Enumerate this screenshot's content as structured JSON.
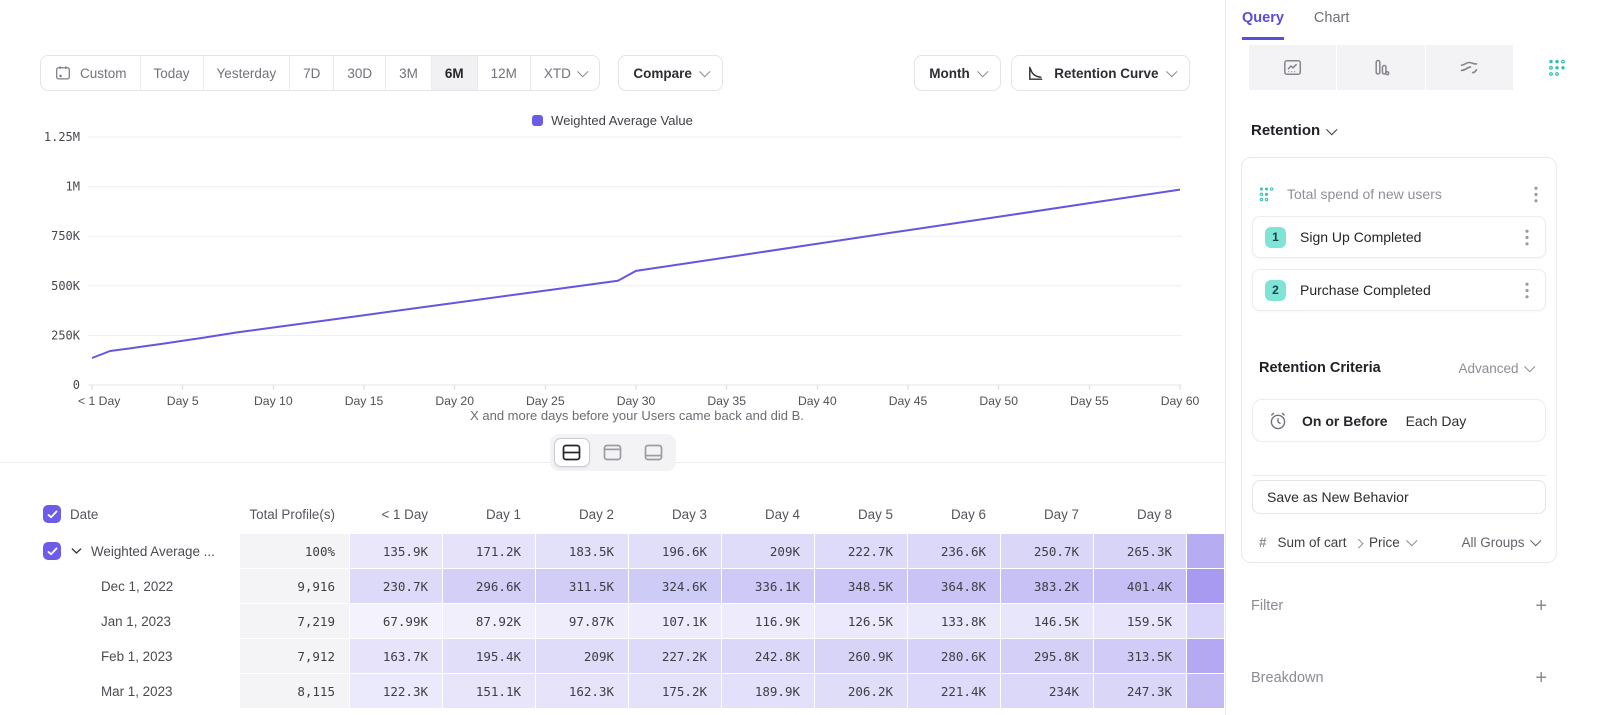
{
  "toolbar": {
    "ranges": [
      "Custom",
      "Today",
      "Yesterday",
      "7D",
      "30D",
      "3M",
      "6M",
      "12M",
      "XTD"
    ],
    "active_range": "6M",
    "compare_label": "Compare",
    "granularity_label": "Month",
    "chart_type_label": "Retention Curve"
  },
  "chart_data": {
    "type": "line",
    "legend": [
      {
        "label": "Weighted Average Value",
        "color": "#6b5ce8"
      }
    ],
    "legend_position": "top-center",
    "grid": true,
    "xlim": [
      0,
      60
    ],
    "ylim": [
      0,
      1250000
    ],
    "caption": "X and more days before your Users came back and did B.",
    "x_ticks": [
      {
        "day": 0,
        "label": "< 1 Day"
      },
      {
        "day": 5,
        "label": "Day 5"
      },
      {
        "day": 10,
        "label": "Day 10"
      },
      {
        "day": 15,
        "label": "Day 15"
      },
      {
        "day": 20,
        "label": "Day 20"
      },
      {
        "day": 25,
        "label": "Day 25"
      },
      {
        "day": 30,
        "label": "Day 30"
      },
      {
        "day": 35,
        "label": "Day 35"
      },
      {
        "day": 40,
        "label": "Day 40"
      },
      {
        "day": 45,
        "label": "Day 45"
      },
      {
        "day": 50,
        "label": "Day 50"
      },
      {
        "day": 55,
        "label": "Day 55"
      },
      {
        "day": 60,
        "label": "Day 60"
      }
    ],
    "y_ticks": [
      {
        "value": 0,
        "label": "0"
      },
      {
        "value": 250000,
        "label": "250K"
      },
      {
        "value": 500000,
        "label": "500K"
      },
      {
        "value": 750000,
        "label": "750K"
      },
      {
        "value": 1000000,
        "label": "1M"
      },
      {
        "value": 1250000,
        "label": "1.25M"
      }
    ],
    "series": [
      {
        "name": "Weighted Average Value",
        "color": "#6456e0",
        "points": [
          [
            0,
            135900
          ],
          [
            1,
            171200
          ],
          [
            2,
            183500
          ],
          [
            3,
            196600
          ],
          [
            4,
            209000
          ],
          [
            5,
            222700
          ],
          [
            6,
            236600
          ],
          [
            7,
            250700
          ],
          [
            8,
            265300
          ],
          [
            10,
            290000
          ],
          [
            15,
            352000
          ],
          [
            20,
            414000
          ],
          [
            25,
            476000
          ],
          [
            29,
            525000
          ],
          [
            30,
            575000
          ],
          [
            35,
            643000
          ],
          [
            40,
            712000
          ],
          [
            45,
            780000
          ],
          [
            50,
            848000
          ],
          [
            55,
            917000
          ],
          [
            60,
            985000
          ]
        ]
      }
    ]
  },
  "layout_toggles": {
    "options": [
      "split",
      "chart-top",
      "table-bottom"
    ],
    "active": "split"
  },
  "table": {
    "columns": [
      "Date",
      "Total Profile(s)",
      "< 1 Day",
      "Day 1",
      "Day 2",
      "Day 3",
      "Day 4",
      "Day 5",
      "Day 6",
      "Day 7",
      "Day 8"
    ],
    "select_all_checked": true,
    "cell_base_color": "#6758e4",
    "rows": [
      {
        "label": "Weighted Average ...",
        "checked": true,
        "expandable": true,
        "total": "100%",
        "values": [
          "135.9K",
          "171.2K",
          "183.5K",
          "196.6K",
          "209K",
          "222.7K",
          "236.6K",
          "250.7K",
          "265.3K"
        ],
        "edge_color": "#b6acf1"
      },
      {
        "label": "Dec 1, 2022",
        "total": "9,916",
        "values": [
          "230.7K",
          "296.6K",
          "311.5K",
          "324.6K",
          "336.1K",
          "348.5K",
          "364.8K",
          "383.2K",
          "401.4K"
        ],
        "edge_color": "#a79af0"
      },
      {
        "label": "Jan 1, 2023",
        "total": "7,219",
        "values": [
          "67.99K",
          "87.92K",
          "97.87K",
          "107.1K",
          "116.9K",
          "126.5K",
          "133.8K",
          "146.5K",
          "159.5K"
        ],
        "edge_color": "#d9d4f9"
      },
      {
        "label": "Feb 1, 2023",
        "total": "7,912",
        "values": [
          "163.7K",
          "195.4K",
          "209K",
          "227.2K",
          "242.8K",
          "260.9K",
          "280.6K",
          "295.8K",
          "313.5K"
        ],
        "edge_color": "#b3a8f1"
      },
      {
        "label": "Mar 1, 2023",
        "total": "8,115",
        "values": [
          "122.3K",
          "151.1K",
          "162.3K",
          "175.2K",
          "189.9K",
          "206.2K",
          "221.4K",
          "234K",
          "247.3K"
        ],
        "edge_color": "#c3bbf4"
      }
    ]
  },
  "panel": {
    "tabs": [
      "Query",
      "Chart"
    ],
    "active_tab": "Query",
    "view_selector": {
      "options": [
        "line-chart",
        "bar-chart",
        "flow",
        "retention-grid"
      ],
      "active": "retention-grid"
    },
    "section_label": "Retention",
    "behavior": {
      "title": "Total spend of new users",
      "steps": [
        {
          "num": "1",
          "label": "Sign Up Completed"
        },
        {
          "num": "2",
          "label": "Purchase Completed"
        }
      ],
      "criteria_label": "Retention Criteria",
      "criteria_mode": "Advanced",
      "criteria_primary": "On or Before",
      "criteria_secondary": "Each Day",
      "save_label": "Save as New Behavior",
      "measure": {
        "prefix": "#",
        "label": "Sum of cart",
        "sub": "Price",
        "groups": "All Groups"
      }
    },
    "filter_label": "Filter",
    "breakdown_label": "Breakdown",
    "accent_teal": "#2ebfae",
    "accent_purple": "#574fd6"
  }
}
